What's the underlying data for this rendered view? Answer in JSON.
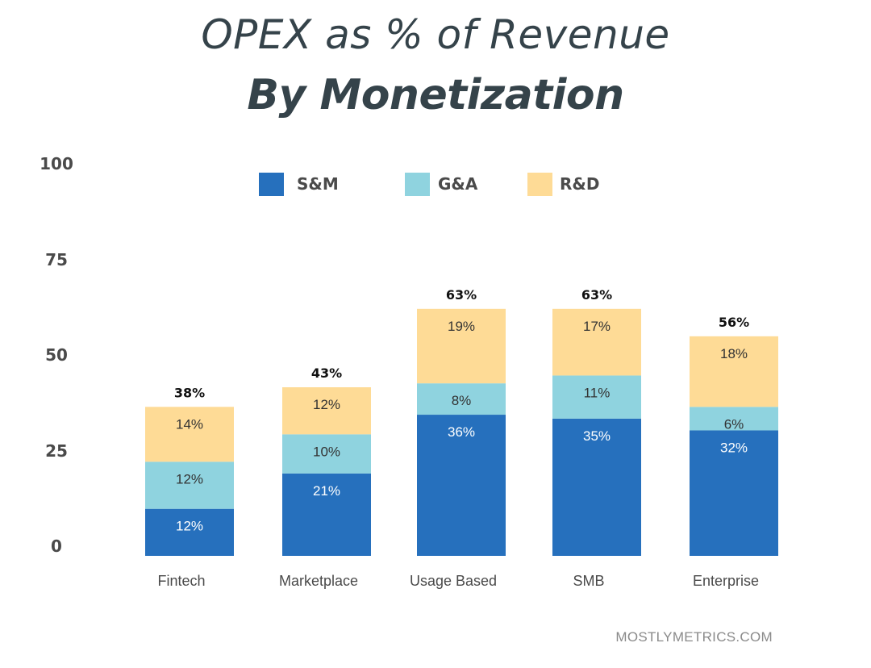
{
  "chart_data": {
    "type": "bar",
    "stacked": true,
    "title": "OPEX as % of Revenue",
    "subtitle": "By Monetization",
    "categories": [
      "Fintech",
      "Marketplace",
      "Usage Based",
      "SMB",
      "Enterprise"
    ],
    "series": [
      {
        "name": "S&M",
        "color": "#2670bd",
        "values": [
          12,
          21,
          36,
          35,
          32
        ]
      },
      {
        "name": "G&A",
        "color": "#8fd3df",
        "values": [
          12,
          10,
          8,
          11,
          6
        ]
      },
      {
        "name": "R&D",
        "color": "#fedb96",
        "values": [
          14,
          12,
          19,
          17,
          18
        ]
      }
    ],
    "segment_labels": [
      [
        "12%",
        "21%",
        "36%",
        "35%",
        "32%"
      ],
      [
        "12%",
        "10%",
        "8%",
        "11%",
        "6%"
      ],
      [
        "14%",
        "12%",
        "19%",
        "17%",
        "18%"
      ]
    ],
    "totals": [
      "38%",
      "43%",
      "63%",
      "63%",
      "56%"
    ],
    "yticks": [
      "0",
      "25",
      "50",
      "75",
      "100"
    ],
    "ylim": [
      0,
      100
    ],
    "grid": false,
    "legend_position": "top"
  },
  "source": "MOSTLYMETRICS.COM"
}
